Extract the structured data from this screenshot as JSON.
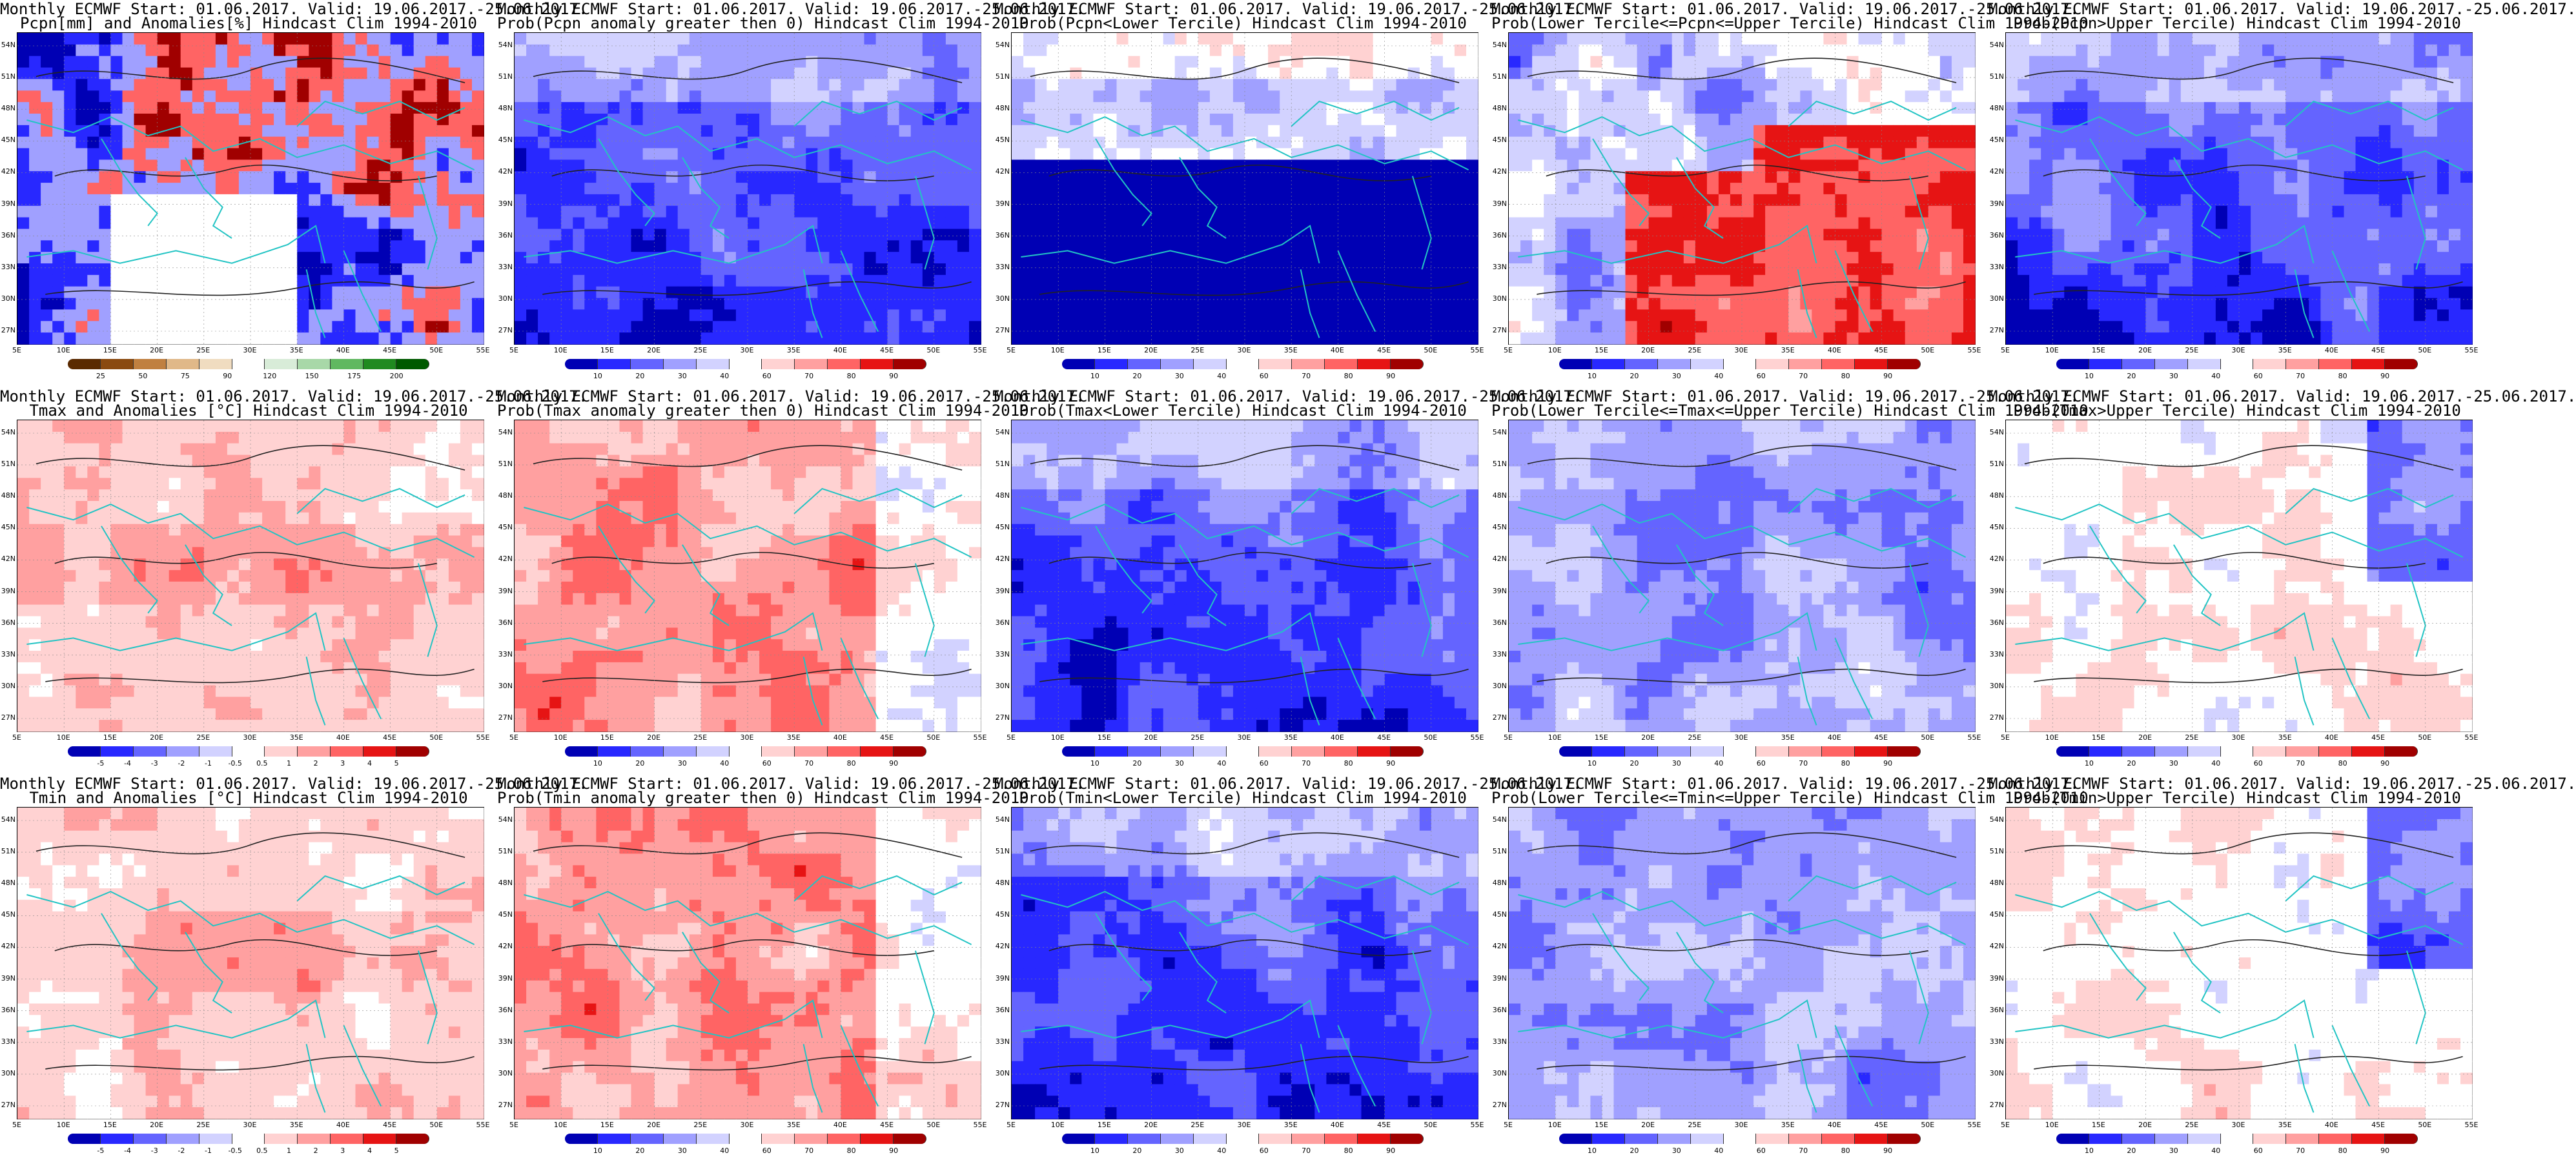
{
  "colors": {
    "coast": "#22c4c4",
    "contour": "#222222",
    "dark_blue": "#0a0a8c",
    "dark_red": "#9c0000",
    "white": "#ffffff"
  },
  "axes": {
    "lat_labels": [
      "54N",
      "51N",
      "48N",
      "45N",
      "42N",
      "39N",
      "36N",
      "33N",
      "30N",
      "27N"
    ],
    "lon_labels": [
      "5E",
      "10E",
      "15E",
      "20E",
      "25E",
      "30E",
      "35E",
      "40E",
      "45E",
      "50E",
      "55E"
    ]
  },
  "colorbars": {
    "pcpn_anom": {
      "colors": [
        "#5a2a00",
        "#8a4a10",
        "#c08040",
        "#e0b888",
        "#f0dcc0",
        "#ffffff",
        "#d8ecd8",
        "#a8d8a8",
        "#60b860",
        "#208a20",
        "#005a00"
      ],
      "ticks": [
        "25",
        "50",
        "75",
        "90",
        "120",
        "150",
        "175",
        "200"
      ]
    },
    "prob": {
      "colors": [
        "#0000b4",
        "#2828ff",
        "#6464ff",
        "#a0a0ff",
        "#d2d2ff",
        "#ffffff",
        "#ffd2d2",
        "#ffa0a0",
        "#ff6464",
        "#e61414",
        "#a00000"
      ],
      "ticks": [
        "10",
        "20",
        "30",
        "40",
        "60",
        "70",
        "80",
        "90"
      ]
    },
    "temp_anom": {
      "colors": [
        "#0000b4",
        "#2828ff",
        "#6464ff",
        "#a0a0ff",
        "#d2d2ff",
        "#ffffff",
        "#ffd2d2",
        "#ffa0a0",
        "#ff6464",
        "#e61414",
        "#a00000"
      ],
      "ticks": [
        "-5",
        "-4",
        "-3",
        "-2",
        "-1",
        "-0.5",
        "0.5",
        "1",
        "2",
        "3",
        "4",
        "5"
      ]
    }
  },
  "panels": [
    {
      "row": 0,
      "col": 0,
      "title1": "Monthly ECMWF Start: 01.06.2017. Valid: 19.06.2017.-25.06.2017.",
      "title2": "Pcpn[mm] and Anomalies[%] Hindcast Clim 1994-2010",
      "scheme": "pcpn",
      "colorbar": "pcpn_anom"
    },
    {
      "row": 0,
      "col": 1,
      "title1": "Monthly ECMWF Start: 01.06.2017. Valid: 19.06.2017.-25.06.2017.",
      "title2": "Prob(Pcpn anomaly greater then 0) Hindcast Clim 1994-2010",
      "scheme": "blue_heavy",
      "colorbar": "prob"
    },
    {
      "row": 0,
      "col": 2,
      "title1": "Monthly ECMWF Start: 01.06.2017. Valid: 19.06.2017.-25.06.2017.",
      "title2": "Prob(Pcpn<Lower Tercile) Hindcast Clim 1994-2010",
      "scheme": "blue_south_dark",
      "colorbar": "prob"
    },
    {
      "row": 0,
      "col": 3,
      "title1": "Monthly ECMWF Start: 01.06.2017. Valid: 19.06.2017.-25.06.2017.",
      "title2": "Prob(Lower Tercile<=Pcpn<=Upper Tercile) Hindcast Clim 1994-2010",
      "scheme": "red_south",
      "colorbar": "prob"
    },
    {
      "row": 0,
      "col": 4,
      "title1": "Monthly ECMWF Start: 01.06.2017. Valid: 19.06.2017.-25.06.2017.",
      "title2": "Prob(Pcpn>Upper Tercile) Hindcast Clim 1994-2010",
      "scheme": "blue_heavy",
      "colorbar": "prob"
    },
    {
      "row": 1,
      "col": 0,
      "title1": "Monthly ECMWF Start: 01.06.2017. Valid: 19.06.2017.-25.06.2017.",
      "title2": "Tmax and Anomalies [°C] Hindcast Clim 1994-2010",
      "scheme": "warm",
      "colorbar": "temp_anom"
    },
    {
      "row": 1,
      "col": 1,
      "title1": "Monthly ECMWF Start: 01.06.2017. Valid: 19.06.2017.-25.06.2017.",
      "title2": "Prob(Tmax anomaly greater then 0) Hindcast Clim 1994-2010",
      "scheme": "warm_strong",
      "colorbar": "prob"
    },
    {
      "row": 1,
      "col": 2,
      "title1": "Monthly ECMWF Start: 01.06.2017. Valid: 19.06.2017.-25.06.2017.",
      "title2": "Prob(Tmax<Lower Tercile) Hindcast Clim 1994-2010",
      "scheme": "blue_heavy",
      "colorbar": "prob"
    },
    {
      "row": 1,
      "col": 3,
      "title1": "Monthly ECMWF Start: 01.06.2017. Valid: 19.06.2017.-25.06.2017.",
      "title2": "Prob(Lower Tercile<=Tmax<=Upper Tercile) Hindcast Clim 1994-2010",
      "scheme": "blue_mid",
      "colorbar": "prob"
    },
    {
      "row": 1,
      "col": 4,
      "title1": "Monthly ECMWF Start: 01.06.2017. Valid: 19.06.2017.-25.06.2017.",
      "title2": "Prob(Tmax>Upper Tercile) Hindcast Clim 1994-2010",
      "scheme": "warm_light",
      "colorbar": "prob"
    },
    {
      "row": 2,
      "col": 0,
      "title1": "Monthly ECMWF Start: 01.06.2017. Valid: 19.06.2017.-25.06.2017.",
      "title2": "Tmin and Anomalies [°C] Hindcast Clim 1994-2010",
      "scheme": "warm",
      "colorbar": "temp_anom"
    },
    {
      "row": 2,
      "col": 1,
      "title1": "Monthly ECMWF Start: 01.06.2017. Valid: 19.06.2017.-25.06.2017.",
      "title2": "Prob(Tmin anomaly greater then 0) Hindcast Clim 1994-2010",
      "scheme": "warm_strong",
      "colorbar": "prob"
    },
    {
      "row": 2,
      "col": 2,
      "title1": "Monthly ECMWF Start: 01.06.2017. Valid: 19.06.2017.-25.06.2017.",
      "title2": "Prob(Tmin<Lower Tercile) Hindcast Clim 1994-2010",
      "scheme": "blue_heavy",
      "colorbar": "prob"
    },
    {
      "row": 2,
      "col": 3,
      "title1": "Monthly ECMWF Start: 01.06.2017. Valid: 19.06.2017.-25.06.2017.",
      "title2": "Prob(Lower Tercile<=Tmin<=Upper Tercile) Hindcast Clim 1994-2010",
      "scheme": "blue_mid",
      "colorbar": "prob"
    },
    {
      "row": 2,
      "col": 4,
      "title1": "Monthly ECMWF Start: 01.06.2017. Valid: 19.06.2017.-25.06.2017.",
      "title2": "Prob(Tmin>Upper Tercile) Hindcast Clim 1994-2010",
      "scheme": "warm_light",
      "colorbar": "prob"
    }
  ]
}
